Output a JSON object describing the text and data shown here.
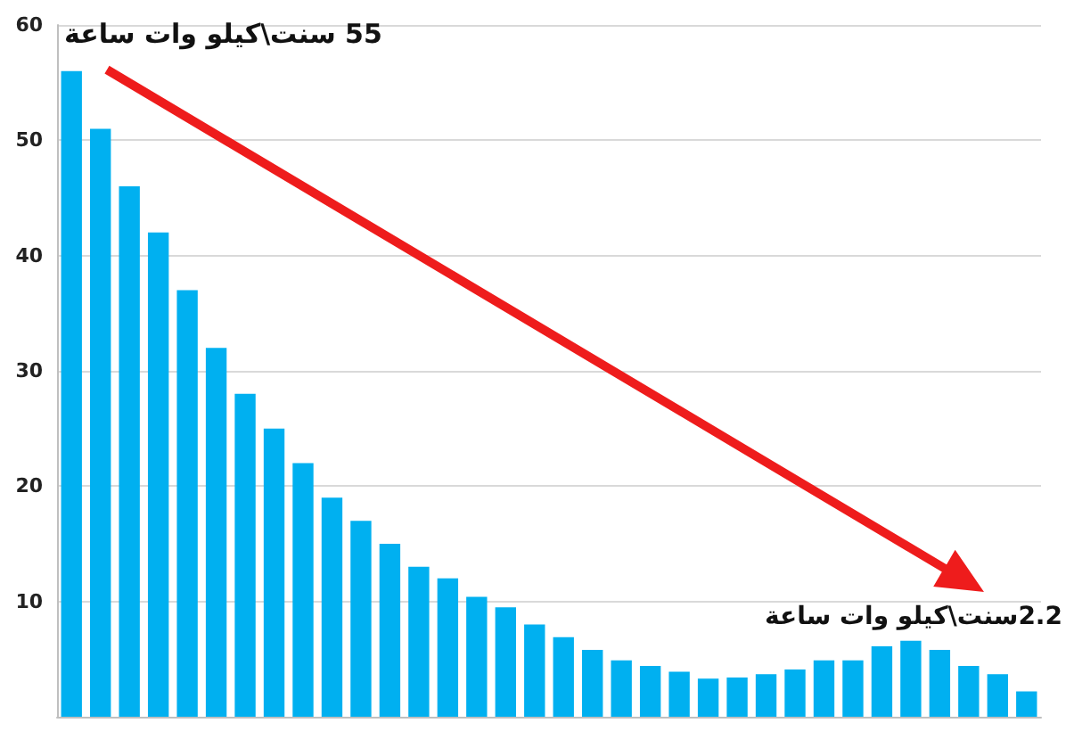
{
  "chart_data": {
    "type": "bar",
    "categories": [
      null,
      null,
      null,
      null,
      null,
      null,
      null,
      null,
      null,
      null,
      null,
      null,
      null,
      null,
      null,
      null,
      null,
      null,
      null,
      null,
      null,
      null,
      null,
      null,
      null,
      null,
      null,
      null,
      null,
      null,
      null,
      null,
      null,
      null
    ],
    "values": [
      56,
      51,
      46,
      42,
      37,
      32,
      28,
      25,
      22,
      19,
      17,
      15,
      13,
      12,
      10.4,
      9.5,
      8,
      6.9,
      5.8,
      4.9,
      4.4,
      3.9,
      3.3,
      3.4,
      3.7,
      4.1,
      4.9,
      4.9,
      6.1,
      6.6,
      5.8,
      4.4,
      3.7,
      2.2
    ],
    "color": "#00b0f0",
    "ylim": [
      0,
      60
    ],
    "yticks": [
      10,
      20,
      30,
      40,
      50,
      60
    ],
    "grid": true,
    "annotations": [
      "55 سنت\\كيلو وات ساعة",
      "2.2سنت\\كيلو وات ساعة"
    ]
  }
}
